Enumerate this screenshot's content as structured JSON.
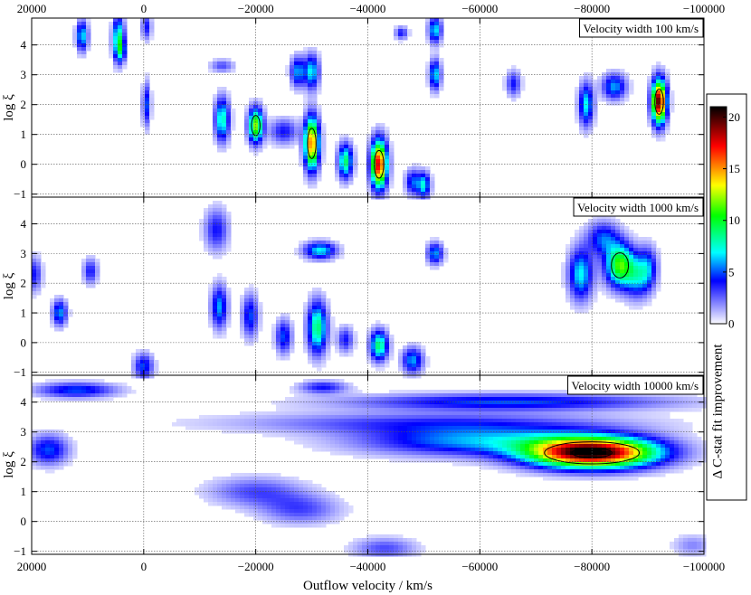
{
  "chart_data": {
    "type": "heatmap",
    "xlabel": "Outflow velocity / km/s",
    "ylabel": "log ξ",
    "xlim": [
      20000,
      -100000
    ],
    "ylim": [
      -1.1,
      4.9
    ],
    "x_ticks": [
      20000,
      0,
      -20000,
      -40000,
      -60000,
      -80000,
      -100000
    ],
    "x_tick_labels": [
      "20000",
      "0",
      "−20000",
      "−40000",
      "−60000",
      "−80000",
      "−100000"
    ],
    "y_ticks": [
      -1,
      0,
      1,
      2,
      3,
      4
    ],
    "y_tick_labels": [
      "−1",
      "0",
      "1",
      "2",
      "3",
      "4"
    ],
    "grid": true,
    "colorbar": {
      "label": "Δ C-stat fit improvement",
      "range": [
        0,
        21
      ],
      "ticks": [
        0,
        5,
        10,
        15,
        20
      ],
      "tick_labels": [
        "0",
        "5",
        "10",
        "15",
        "20"
      ],
      "colormap": [
        "#ffffff",
        "#0000ff",
        "#00ffff",
        "#00ff00",
        "#ffff00",
        "#ff0000",
        "#000000"
      ]
    },
    "panels": [
      {
        "label": "Velocity width 100 km/s",
        "peak_max": 20,
        "blobs": [
          {
            "v": 11000,
            "logxi": 4.3,
            "amp": 7,
            "sv": 700,
            "sx": 0.35
          },
          {
            "v": 4500,
            "logxi": 4.2,
            "amp": 9,
            "sv": 700,
            "sx": 0.5
          },
          {
            "v": 4000,
            "logxi": 3.8,
            "amp": 4,
            "sv": 600,
            "sx": 0.25
          },
          {
            "v": -500,
            "logxi": 2.0,
            "amp": 5,
            "sv": 500,
            "sx": 0.5
          },
          {
            "v": -500,
            "logxi": 4.6,
            "amp": 4,
            "sv": 600,
            "sx": 0.3
          },
          {
            "v": -14000,
            "logxi": 1.5,
            "amp": 8,
            "sv": 900,
            "sx": 0.5
          },
          {
            "v": -14000,
            "logxi": 3.3,
            "amp": 3,
            "sv": 1500,
            "sx": 0.15
          },
          {
            "v": -20000,
            "logxi": 1.3,
            "amp": 12,
            "sv": 900,
            "sx": 0.4
          },
          {
            "v": -25000,
            "logxi": 1.1,
            "amp": 4,
            "sv": 1800,
            "sx": 0.3
          },
          {
            "v": -27500,
            "logxi": 3.1,
            "amp": 6,
            "sv": 900,
            "sx": 0.35
          },
          {
            "v": -30000,
            "logxi": 0.7,
            "amp": 16,
            "sv": 900,
            "sx": 0.6
          },
          {
            "v": -30000,
            "logxi": 3.1,
            "amp": 7,
            "sv": 900,
            "sx": 0.4
          },
          {
            "v": -36000,
            "logxi": 0.1,
            "amp": 9,
            "sv": 900,
            "sx": 0.4
          },
          {
            "v": -42000,
            "logxi": 0.0,
            "amp": 18,
            "sv": 1000,
            "sx": 0.55
          },
          {
            "v": -46000,
            "logxi": 4.4,
            "amp": 4,
            "sv": 800,
            "sx": 0.15
          },
          {
            "v": -48000,
            "logxi": -0.6,
            "amp": 5,
            "sv": 900,
            "sx": 0.3
          },
          {
            "v": -50000,
            "logxi": -0.7,
            "amp": 7,
            "sv": 800,
            "sx": 0.3
          },
          {
            "v": -52000,
            "logxi": 3.0,
            "amp": 7,
            "sv": 700,
            "sx": 0.35
          },
          {
            "v": -52000,
            "logxi": 4.5,
            "amp": 7,
            "sv": 800,
            "sx": 0.3
          },
          {
            "v": -66000,
            "logxi": 2.7,
            "amp": 4,
            "sv": 900,
            "sx": 0.3
          },
          {
            "v": -79000,
            "logxi": 2.0,
            "amp": 7,
            "sv": 900,
            "sx": 0.5
          },
          {
            "v": -84000,
            "logxi": 2.6,
            "amp": 6,
            "sv": 1500,
            "sx": 0.3
          },
          {
            "v": -92000,
            "logxi": 2.1,
            "amp": 20,
            "sv": 900,
            "sx": 0.5
          }
        ]
      },
      {
        "label": "Velocity width 1000 km/s",
        "peak_max": 14,
        "blobs": [
          {
            "v": 19500,
            "logxi": 2.3,
            "amp": 4,
            "sv": 900,
            "sx": 0.4
          },
          {
            "v": 15000,
            "logxi": 1.0,
            "amp": 6,
            "sv": 900,
            "sx": 0.3
          },
          {
            "v": 9500,
            "logxi": 2.4,
            "amp": 4,
            "sv": 900,
            "sx": 0.3
          },
          {
            "v": 0,
            "logxi": -0.8,
            "amp": 5,
            "sv": 1200,
            "sx": 0.3
          },
          {
            "v": -13000,
            "logxi": 3.8,
            "amp": 4,
            "sv": 1500,
            "sx": 0.5
          },
          {
            "v": -13500,
            "logxi": 1.2,
            "amp": 6,
            "sv": 1000,
            "sx": 0.5
          },
          {
            "v": -19000,
            "logxi": 0.9,
            "amp": 5,
            "sv": 1000,
            "sx": 0.5
          },
          {
            "v": -25000,
            "logxi": 0.2,
            "amp": 5,
            "sv": 1000,
            "sx": 0.4
          },
          {
            "v": -31000,
            "logxi": 0.5,
            "amp": 9,
            "sv": 1200,
            "sx": 0.6
          },
          {
            "v": -31500,
            "logxi": 3.1,
            "amp": 7,
            "sv": 2000,
            "sx": 0.2
          },
          {
            "v": -36000,
            "logxi": 0.1,
            "amp": 4,
            "sv": 1000,
            "sx": 0.3
          },
          {
            "v": -42000,
            "logxi": -0.1,
            "amp": 9,
            "sv": 1100,
            "sx": 0.35
          },
          {
            "v": -48000,
            "logxi": -0.6,
            "amp": 6,
            "sv": 1300,
            "sx": 0.3
          },
          {
            "v": -52000,
            "logxi": 3.0,
            "amp": 6,
            "sv": 1000,
            "sx": 0.25
          },
          {
            "v": -78000,
            "logxi": 2.3,
            "amp": 7,
            "sv": 1500,
            "sx": 0.6
          },
          {
            "v": -85000,
            "logxi": 2.6,
            "amp": 11,
            "sv": 1800,
            "sx": 0.5
          },
          {
            "v": -88000,
            "logxi": 2.2,
            "amp": 5,
            "sv": 1500,
            "sx": 0.5
          },
          {
            "v": -90000,
            "logxi": 2.5,
            "amp": 5,
            "sv": 1200,
            "sx": 0.5
          },
          {
            "v": -82000,
            "logxi": 3.5,
            "amp": 5,
            "sv": 2000,
            "sx": 0.4
          }
        ]
      },
      {
        "label": "Velocity width 10000 km/s",
        "peak_max": 21,
        "blobs": [
          {
            "v": 12000,
            "logxi": 4.4,
            "amp": 5,
            "sv": 5000,
            "sx": 0.18
          },
          {
            "v": 17000,
            "logxi": 2.4,
            "amp": 5,
            "sv": 2500,
            "sx": 0.35
          },
          {
            "v": -80000,
            "logxi": 2.3,
            "amp": 21,
            "sv": 8000,
            "sx": 0.35
          },
          {
            "v": -60000,
            "logxi": 2.7,
            "amp": 6,
            "sv": 15000,
            "sx": 0.35
          },
          {
            "v": -65000,
            "logxi": 4.0,
            "amp": 5,
            "sv": 20000,
            "sx": 0.2
          },
          {
            "v": -50000,
            "logxi": 3.3,
            "amp": 3,
            "sv": 25000,
            "sx": 0.25
          },
          {
            "v": -32000,
            "logxi": 4.5,
            "amp": 4,
            "sv": 3000,
            "sx": 0.15
          },
          {
            "v": -20000,
            "logxi": 1.0,
            "amp": 3,
            "sv": 6000,
            "sx": 0.35
          },
          {
            "v": -28000,
            "logxi": 0.4,
            "amp": 3,
            "sv": 5000,
            "sx": 0.35
          },
          {
            "v": -43000,
            "logxi": -0.9,
            "amp": 3,
            "sv": 4000,
            "sx": 0.25
          },
          {
            "v": -98000,
            "logxi": -0.8,
            "amp": 2,
            "sv": 2500,
            "sx": 0.25
          }
        ],
        "contour_levels": [
          12,
          19
        ]
      }
    ]
  }
}
